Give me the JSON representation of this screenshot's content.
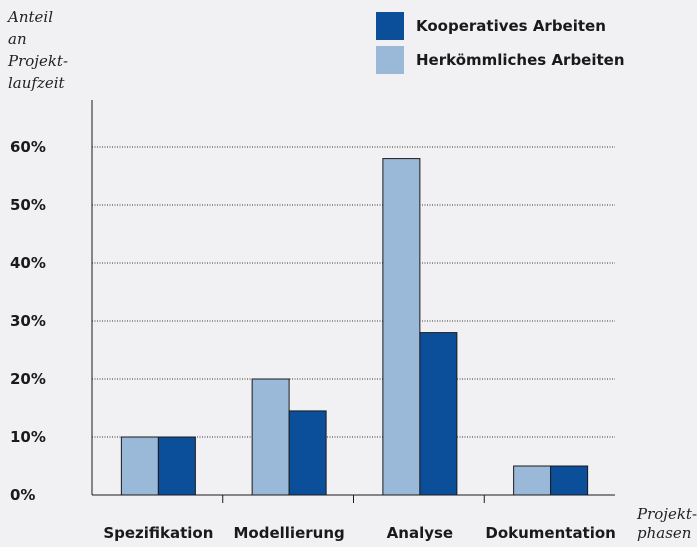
{
  "colors": {
    "series_kooperativ": "#0b4f9a",
    "series_herkoemmlich": "#9ab8d8",
    "bar_stroke": "#1a1a1a",
    "grid": "#333333",
    "background": "#f1f1f3"
  },
  "chart_data": {
    "type": "bar",
    "title": "",
    "ylabel_lines": [
      "Anteil",
      "an",
      "Projekt-",
      "laufzeit"
    ],
    "xlabel_lines": [
      "Projekt-",
      "phasen"
    ],
    "categories": [
      "Spezifikation",
      "Modellierung",
      "Analyse",
      "Dokumentation"
    ],
    "series": [
      {
        "name": "Herkömmliches Arbeiten",
        "values": [
          10,
          20,
          58,
          5
        ]
      },
      {
        "name": "Kooperatives Arbeiten",
        "values": [
          10,
          14.5,
          28,
          5
        ]
      }
    ],
    "ylim": [
      0,
      60
    ],
    "yticks": [
      0,
      10,
      20,
      30,
      40,
      50,
      60
    ],
    "ytick_labels": [
      "0%",
      "10%",
      "20%",
      "30%",
      "40%",
      "50%",
      "60%"
    ],
    "grid": true,
    "legend": {
      "placement": "top-right",
      "entries": [
        "Kooperatives Arbeiten",
        "Herkömmliches Arbeiten"
      ]
    }
  }
}
